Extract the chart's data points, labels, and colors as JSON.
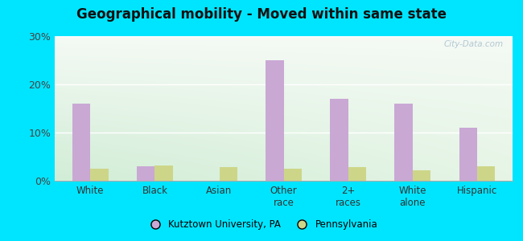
{
  "title": "Geographical mobility - Moved within same state",
  "categories": [
    "White",
    "Black",
    "Asian",
    "Other\nrace",
    "2+\nraces",
    "White\nalone",
    "Hispanic"
  ],
  "kutztown_values": [
    16.0,
    3.0,
    0.0,
    25.0,
    17.0,
    16.0,
    11.0
  ],
  "pennsylvania_values": [
    2.5,
    3.2,
    2.8,
    2.5,
    2.8,
    2.2,
    3.0
  ],
  "kutztown_color": "#c9a8d4",
  "pennsylvania_color": "#cdd688",
  "ylim": [
    0,
    30
  ],
  "yticks": [
    0,
    10,
    20,
    30
  ],
  "ytick_labels": [
    "0%",
    "10%",
    "20%",
    "30%"
  ],
  "outer_background": "#00e5ff",
  "bar_width": 0.28,
  "legend_kutztown": "Kutztown University, PA",
  "legend_pennsylvania": "Pennsylvania",
  "watermark": "City-Data.com"
}
